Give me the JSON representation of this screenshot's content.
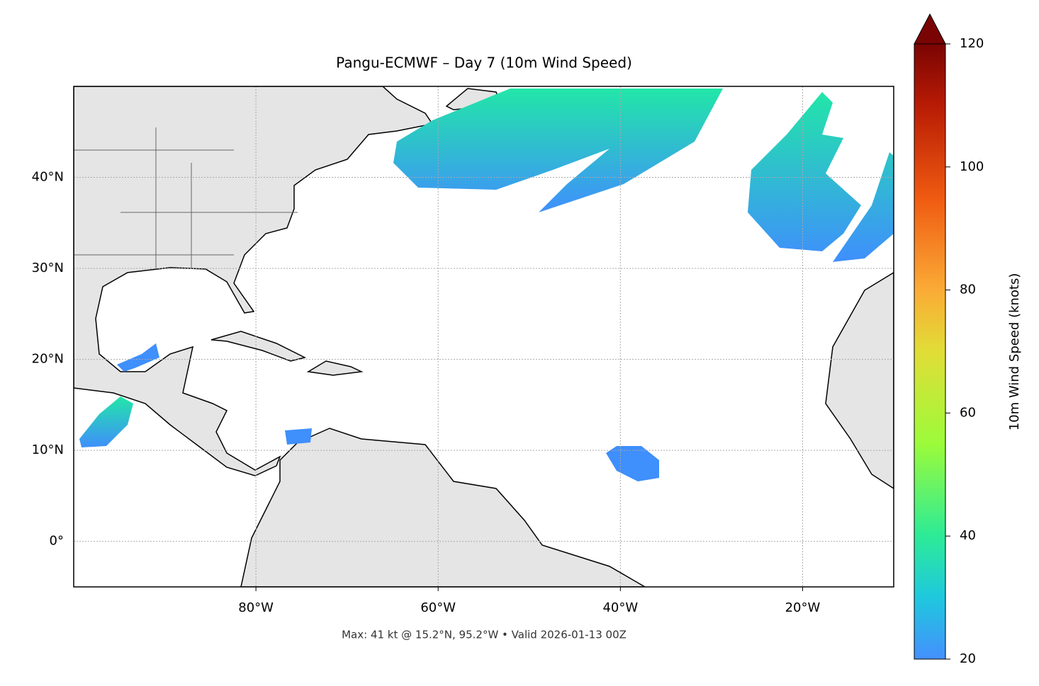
{
  "chart_data": {
    "type": "map",
    "title": "Pangu-ECMWF – Day 7 (10m Wind Speed)",
    "xlim": [
      -100,
      -10
    ],
    "xticks": [
      {
        "value": -80,
        "label": "80°W"
      },
      {
        "value": -60,
        "label": "60°W"
      },
      {
        "value": -40,
        "label": "40°W"
      },
      {
        "value": -20,
        "label": "20°W"
      }
    ],
    "ylim": [
      -5,
      50
    ],
    "yticks": [
      {
        "value": 0,
        "label": "0°"
      },
      {
        "value": 10,
        "label": "10°N"
      },
      {
        "value": 20,
        "label": "20°N"
      },
      {
        "value": 30,
        "label": "30°N"
      },
      {
        "value": 40,
        "label": "40°N"
      }
    ],
    "grid": true,
    "colorbar": {
      "label": "10m Wind Speed (knots)",
      "lim": [
        20,
        120
      ],
      "ticks": [
        20,
        40,
        60,
        80,
        100,
        120
      ]
    },
    "annotation": "Max: 41 kt @ 15.2°N, 95.2°W • Valid 2026-01-13 00Z"
  }
}
